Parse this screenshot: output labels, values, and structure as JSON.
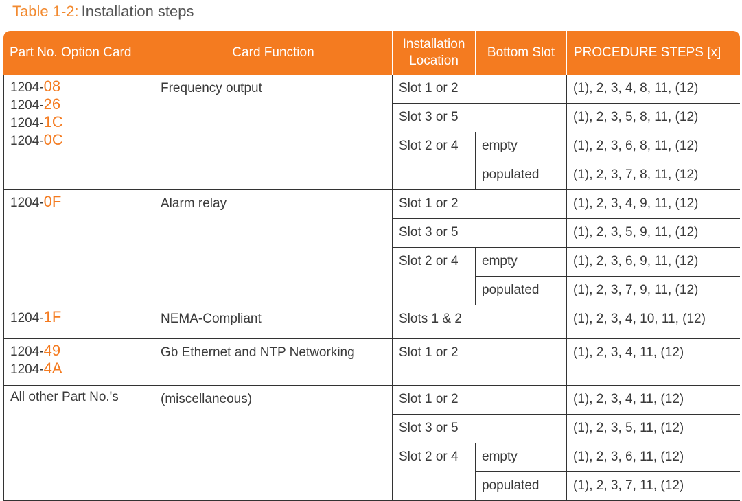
{
  "caption": {
    "label": "Table 1-2:",
    "title": "Installation steps"
  },
  "table": {
    "header": [
      "Part No. Option Card",
      "Card Function",
      "Installation Location",
      "Bottom Slot",
      "PROCEDURE STEPS [x]"
    ],
    "groups": [
      {
        "parts": [
          {
            "prefix": "1204-",
            "code": "08"
          },
          {
            "prefix": "1204-",
            "code": "26"
          },
          {
            "prefix": "1204-",
            "code": "1C"
          },
          {
            "prefix": "1204-",
            "code": "0C"
          }
        ],
        "function": "Frequency output",
        "rows": [
          {
            "location": "Slot 1 or 2",
            "steps": "(1), 2, 3, 4, 8, 11, (12)"
          },
          {
            "location": "Slot 3 or 5",
            "steps": "(1), 2, 3, 5, 8, 11, (12)"
          },
          {
            "location": "Slot 2 or 4",
            "options": [
              {
                "bottom": "empty",
                "steps": "(1), 2, 3, 6, 8, 11, (12)"
              },
              {
                "bottom": "populated",
                "steps": "(1), 2, 3, 7, 8, 11, (12)"
              }
            ]
          }
        ]
      },
      {
        "parts": [
          {
            "prefix": "1204-",
            "code": "0F"
          }
        ],
        "function": "Alarm relay",
        "rows": [
          {
            "location": "Slot 1 or 2",
            "steps": "(1), 2, 3, 4, 9, 11, (12)"
          },
          {
            "location": "Slot 3 or 5",
            "steps": "(1), 2, 3, 5, 9, 11, (12)"
          },
          {
            "location": "Slot 2 or 4",
            "options": [
              {
                "bottom": "empty",
                "steps": "(1), 2, 3, 6, 9, 11, (12)"
              },
              {
                "bottom": "populated",
                "steps": "(1), 2, 3, 7, 9, 11, (12)"
              }
            ]
          }
        ]
      },
      {
        "parts": [
          {
            "prefix": "1204-",
            "code": "1F"
          }
        ],
        "function": "NEMA-Compliant",
        "rows": [
          {
            "location": "Slots 1 & 2",
            "steps": "(1), 2, 3, 4, 10, 11, (12)"
          }
        ]
      },
      {
        "parts": [
          {
            "prefix": "1204-",
            "code": "49"
          },
          {
            "prefix": "1204-",
            "code": "4A"
          }
        ],
        "function": "Gb Ethernet and NTP Networking",
        "rows": [
          {
            "location": "Slot 1 or 2",
            "steps": "(1), 2, 3, 4, 11, (12)"
          }
        ]
      },
      {
        "parts": [
          {
            "prefix": "All other Part No.'s"
          }
        ],
        "function": "(miscellaneous)",
        "rows": [
          {
            "location": "Slot 1 or 2",
            "steps": "(1), 2, 3, 4, 11, (12)"
          },
          {
            "location": "Slot 3 or 5",
            "steps": "(1), 2, 3, 5, 11, (12)"
          },
          {
            "location": "Slot 2 or 4",
            "options": [
              {
                "bottom": "empty",
                "steps": "(1), 2, 3, 6, 11, (12)"
              },
              {
                "bottom": "populated",
                "steps": "(1), 2, 3, 7, 11, (12)"
              }
            ]
          }
        ]
      }
    ]
  }
}
